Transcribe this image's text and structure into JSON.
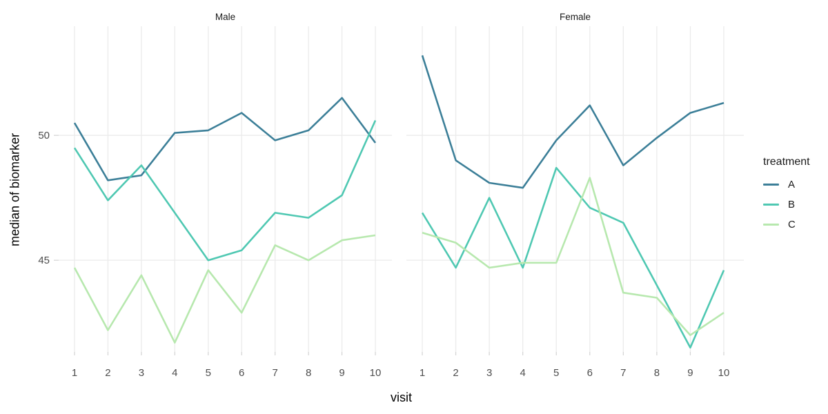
{
  "figure": {
    "legend": {
      "title": "treatment",
      "items": [
        {
          "label": "A"
        },
        {
          "label": "B"
        },
        {
          "label": "C"
        }
      ]
    }
  },
  "chart_data": {
    "type": "line",
    "xlabel": "visit",
    "ylabel": "median of biomarker",
    "x": [
      1,
      2,
      3,
      4,
      5,
      6,
      7,
      8,
      9,
      10
    ],
    "y_ticks": [
      45,
      50
    ],
    "ylim": [
      41.33,
      54.37
    ],
    "grid": "vertical major gridlines at each visit, horizontal gridlines at 45 and 50, no panel border",
    "legend_position": "right",
    "facets": [
      {
        "label": "Male",
        "series": [
          {
            "name": "A",
            "color": "#3c7f98",
            "values": [
              50.5,
              48.2,
              48.4,
              50.1,
              50.2,
              50.9,
              49.8,
              50.2,
              51.5,
              49.7
            ]
          },
          {
            "name": "B",
            "color": "#4fc8b2",
            "values": [
              49.5,
              47.4,
              48.8,
              46.9,
              45.0,
              45.4,
              46.9,
              46.7,
              47.6,
              50.6
            ]
          },
          {
            "name": "C",
            "color": "#b7e8ae",
            "values": [
              44.7,
              42.2,
              44.4,
              41.7,
              44.6,
              42.9,
              45.6,
              45.0,
              45.8,
              46.0
            ]
          }
        ]
      },
      {
        "label": "Female",
        "series": [
          {
            "name": "A",
            "color": "#3c7f98",
            "values": [
              53.2,
              49.0,
              48.1,
              47.9,
              49.8,
              51.2,
              48.8,
              49.9,
              50.9,
              51.3
            ]
          },
          {
            "name": "B",
            "color": "#4fc8b2",
            "values": [
              46.9,
              44.7,
              47.5,
              44.7,
              48.7,
              47.1,
              46.5,
              44.0,
              41.5,
              44.6
            ]
          },
          {
            "name": "C",
            "color": "#b7e8ae",
            "values": [
              46.1,
              45.7,
              44.7,
              44.9,
              44.9,
              48.3,
              43.7,
              43.5,
              42.0,
              42.9
            ]
          }
        ]
      }
    ],
    "colors": {
      "grid": "#ebebeb",
      "tick": "#d2d2d2",
      "tick_text": "#4d4d4d",
      "title_text": "#000000"
    }
  }
}
